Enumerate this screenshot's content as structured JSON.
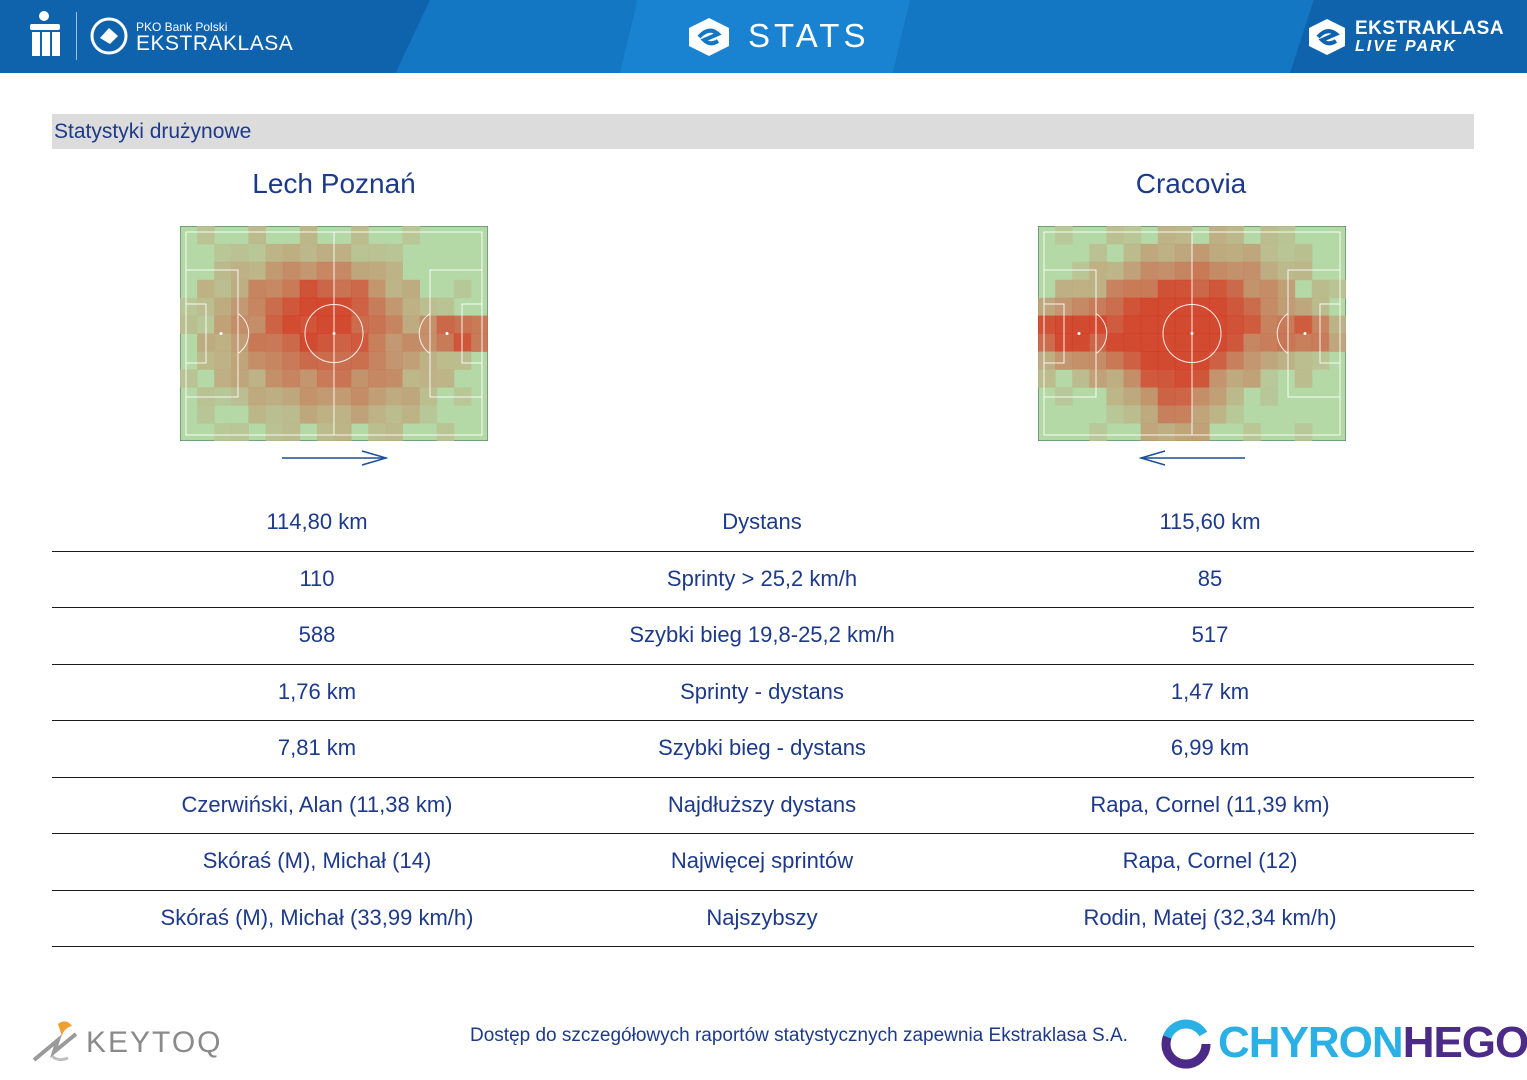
{
  "header": {
    "brand_small": "PKO Bank Polski",
    "brand_big": "EKSTRAKLASA",
    "title": "STATS",
    "liveapark_line1": "EKSTRAKLASA",
    "liveapark_line2": "LIVE PARK"
  },
  "section": {
    "title": "Statystyki drużynowe"
  },
  "teams": {
    "left": "Lech Poznań",
    "right": "Cracovia"
  },
  "heatmaps": {
    "left_direction": "right",
    "right_direction": "left",
    "colors": {
      "pitch": "#b5d9a6",
      "hot": "#d7311c",
      "line": "#ffffff"
    }
  },
  "stats": [
    {
      "left": "114,80 km",
      "label": "Dystans",
      "right": "115,60 km"
    },
    {
      "left": "110",
      "label": "Sprinty > 25,2 km/h",
      "right": "85"
    },
    {
      "left": "588",
      "label": "Szybki bieg 19,8-25,2 km/h",
      "right": "517"
    },
    {
      "left": "1,76 km",
      "label": "Sprinty - dystans",
      "right": "1,47 km"
    },
    {
      "left": "7,81 km",
      "label": "Szybki bieg - dystans",
      "right": "6,99 km"
    },
    {
      "left": "Czerwiński, Alan (11,38 km)",
      "label": "Najdłuższy dystans",
      "right": "Rapa, Cornel (11,39 km)"
    },
    {
      "left": "Skóraś (M), Michał (14)",
      "label": "Najwięcej sprintów",
      "right": "Rapa, Cornel (12)"
    },
    {
      "left": "Skóraś (M), Michał (33,99 km/h)",
      "label": "Najszybszy",
      "right": "Rodin, Matej (32,34 km/h)"
    }
  ],
  "footer": {
    "note": "Dostęp do szczegółowych raportów statystycznych zapewnia Ekstraklasa S.A.",
    "keytoq": "KEYTOQ",
    "chyron_a": "CHYRON",
    "chyron_b": "HEGO"
  }
}
